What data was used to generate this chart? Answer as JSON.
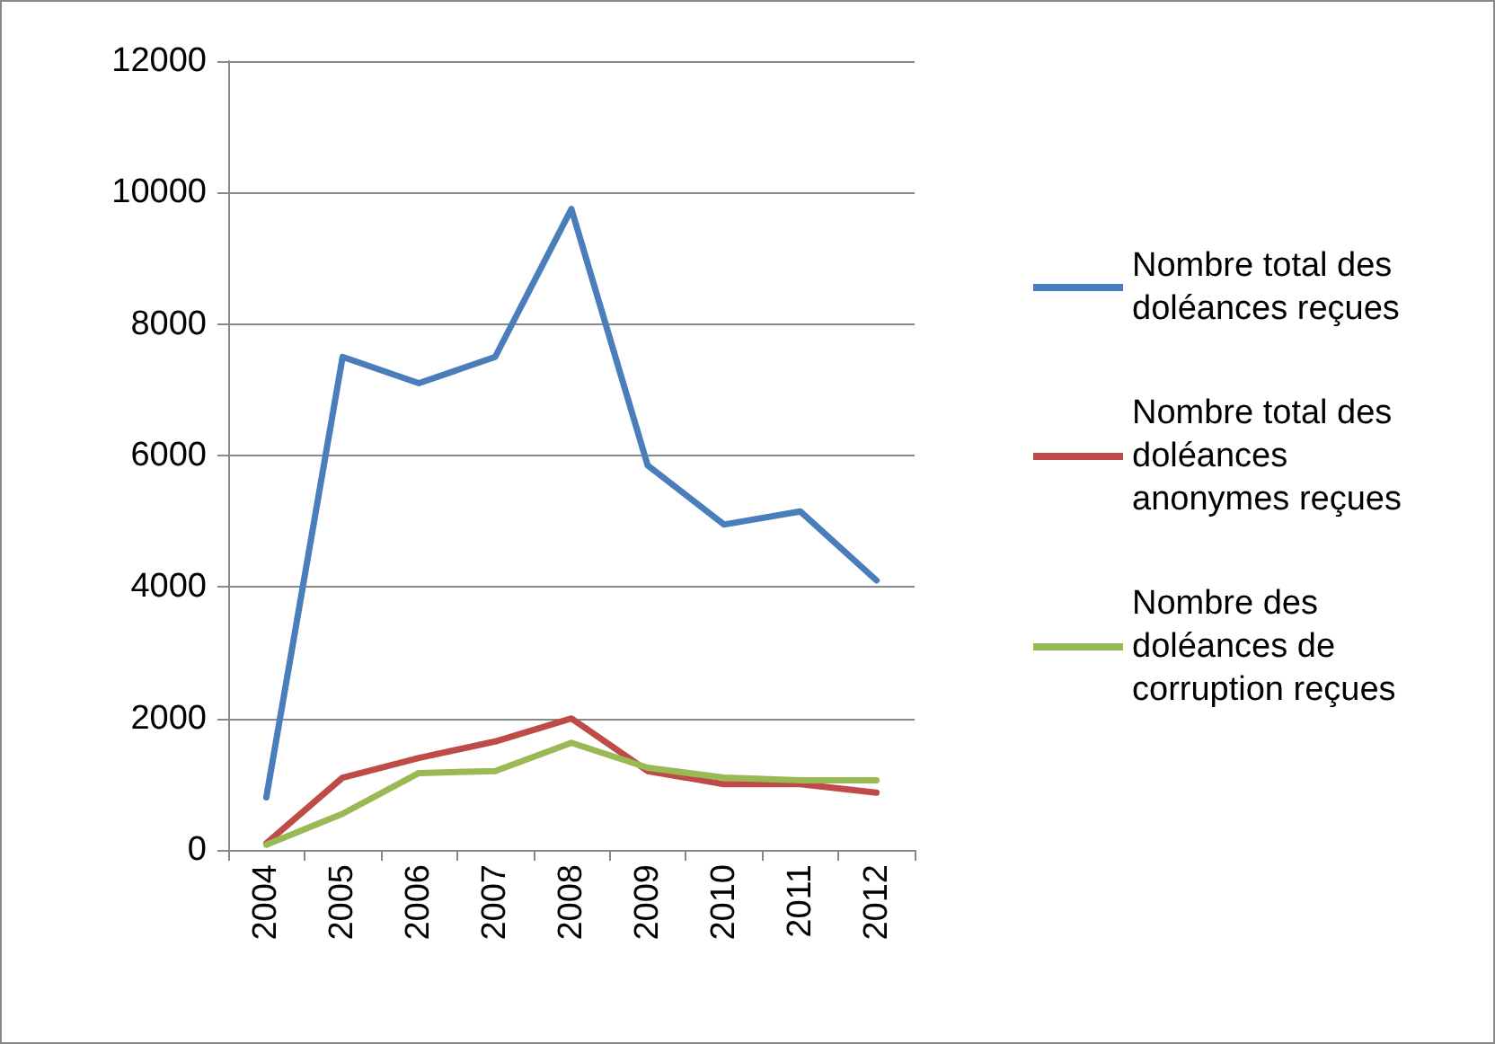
{
  "chart_data": {
    "type": "line",
    "categories": [
      "2004",
      "2005",
      "2006",
      "2007",
      "2008",
      "2009",
      "2010",
      "2011",
      "2012"
    ],
    "series": [
      {
        "name": "Nombre total des doléances reçues",
        "color": "#4a7ebb",
        "values": [
          800,
          7500,
          7100,
          7500,
          9750,
          5850,
          4950,
          5150,
          4100
        ]
      },
      {
        "name": "Nombre total des doléances anonymes reçues",
        "color": "#be4b48",
        "values": [
          100,
          1100,
          1400,
          1650,
          2000,
          1200,
          1000,
          1000,
          870
        ]
      },
      {
        "name": "Nombre des doléances de corruption reçues",
        "color": "#98b954",
        "values": [
          80,
          550,
          1170,
          1200,
          1630,
          1250,
          1100,
          1060,
          1060
        ]
      }
    ],
    "ylim": [
      0,
      12000
    ],
    "yticks": [
      0,
      2000,
      4000,
      6000,
      8000,
      10000,
      12000
    ],
    "grid": "y",
    "legend": "right",
    "marker": "none",
    "line_style": "solid"
  }
}
